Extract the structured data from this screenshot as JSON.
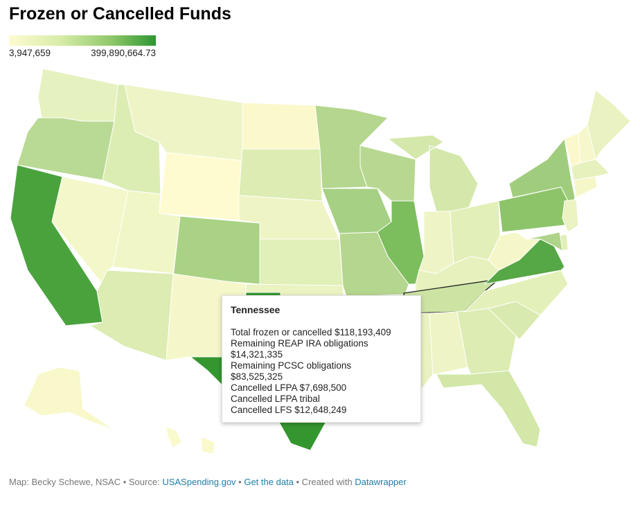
{
  "title": "Frozen or Cancelled Funds",
  "legend": {
    "min_label": "3,947,659",
    "max_label": "399,890,664.73",
    "color_low": "#fefbd1",
    "color_high": "#2c9631"
  },
  "map": {
    "states": {
      "WA": {
        "color": "#e5f1bf"
      },
      "OR": {
        "color": "#b9da94"
      },
      "CA": {
        "color": "#4aa23d"
      },
      "NV": {
        "color": "#f4f7c9"
      },
      "ID": {
        "color": "#dcedb4"
      },
      "MT": {
        "color": "#eef4c6"
      },
      "WY": {
        "color": "#fffbd0"
      },
      "UT": {
        "color": "#f1f6c7"
      },
      "AZ": {
        "color": "#dcecb2"
      },
      "CO": {
        "color": "#a9d285"
      },
      "NM": {
        "color": "#f5f7ca"
      },
      "ND": {
        "color": "#fbf9cc"
      },
      "SD": {
        "color": "#dcecb3"
      },
      "NE": {
        "color": "#eff4c5"
      },
      "KS": {
        "color": "#e1efb8"
      },
      "OK": {
        "color": "#eaf3c1"
      },
      "TX": {
        "color": "#34962f"
      },
      "MN": {
        "color": "#b4d68e"
      },
      "IA": {
        "color": "#a6d083"
      },
      "MO": {
        "color": "#b5d68e"
      },
      "AR": {
        "color": "#cde5a5"
      },
      "LA": {
        "color": "#cae3a2"
      },
      "WI": {
        "color": "#b8d891"
      },
      "IL": {
        "color": "#7cbd5d"
      },
      "MI": {
        "color": "#d5e8ab"
      },
      "IN": {
        "color": "#eef4c5"
      },
      "OH": {
        "color": "#e2efb8"
      },
      "KY": {
        "color": "#e6f1bd"
      },
      "TN": {
        "color": "#cce3a4"
      },
      "MS": {
        "color": "#e9f2c0"
      },
      "AL": {
        "color": "#eef4c5"
      },
      "GA": {
        "color": "#dcecb3"
      },
      "FL": {
        "color": "#d2e7a8"
      },
      "SC": {
        "color": "#d9eab0"
      },
      "NC": {
        "color": "#e3f0b9"
      },
      "VA": {
        "color": "#56a745"
      },
      "WV": {
        "color": "#f5f7c9"
      },
      "PA": {
        "color": "#8dc46a"
      },
      "NY": {
        "color": "#a0cd7d"
      },
      "VT": {
        "color": "#fbf9cc"
      },
      "NH": {
        "color": "#f6f7ca"
      },
      "ME": {
        "color": "#e9f2c0"
      },
      "MA": {
        "color": "#e6f1bd"
      },
      "CT": {
        "color": "#f5f7c9"
      },
      "NJ": {
        "color": "#eaf3c1"
      },
      "DE": {
        "color": "#e2efb8"
      },
      "MD": {
        "color": "#aed389"
      },
      "AK": {
        "color": "#f8f8cb"
      },
      "HI": {
        "color": "#f9f9cc"
      }
    }
  },
  "tooltip": {
    "title": "Tennessee",
    "lines": [
      "Total frozen or cancelled $118,193,409",
      "Remaining REAP IRA obligations",
      "$14,321,335",
      "Remaining PCSC obligations",
      "$83,525,325",
      "Cancelled LFPA $7,698,500",
      "Cancelled LFPA tribal",
      "Cancelled LFS $12,648,249"
    ]
  },
  "footer": {
    "prefix": "Map: Becky Schewe, NSAC • Source: ",
    "source_link": "USASpending.gov",
    "sep1": " • ",
    "data_link": "Get the data",
    "sep2": " • Created with ",
    "dw_link": "Datawrapper"
  }
}
